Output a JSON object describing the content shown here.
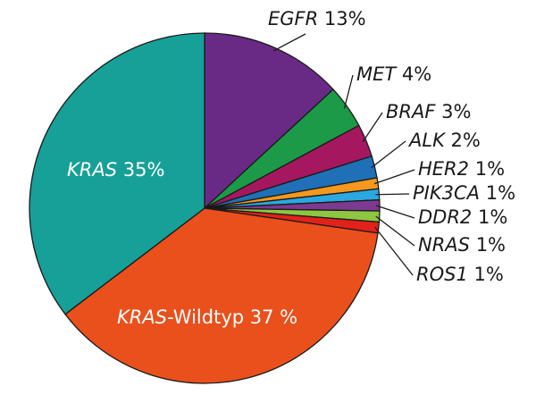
{
  "chart_data": {
    "type": "pie",
    "categories": [
      "EGFR",
      "MET",
      "BRAF",
      "ALK",
      "HER2",
      "PIK3CA",
      "DDR2",
      "NRAS",
      "ROS1",
      "KRAS-Wildtyp",
      "KRAS"
    ],
    "values": [
      13,
      4,
      3,
      2,
      1,
      1,
      1,
      1,
      1,
      37,
      35
    ],
    "value_labels": [
      "13%",
      "4%",
      "3%",
      "2%",
      "1%",
      "1%",
      "1%",
      "1%",
      "1%",
      "37 %",
      "35%"
    ],
    "colors": [
      "#692a86",
      "#1c9a47",
      "#a5185f",
      "#1f70b6",
      "#f4991d",
      "#2aa8df",
      "#7c3a90",
      "#8dc641",
      "#e3211b",
      "#e9501c",
      "#17a097"
    ]
  }
}
